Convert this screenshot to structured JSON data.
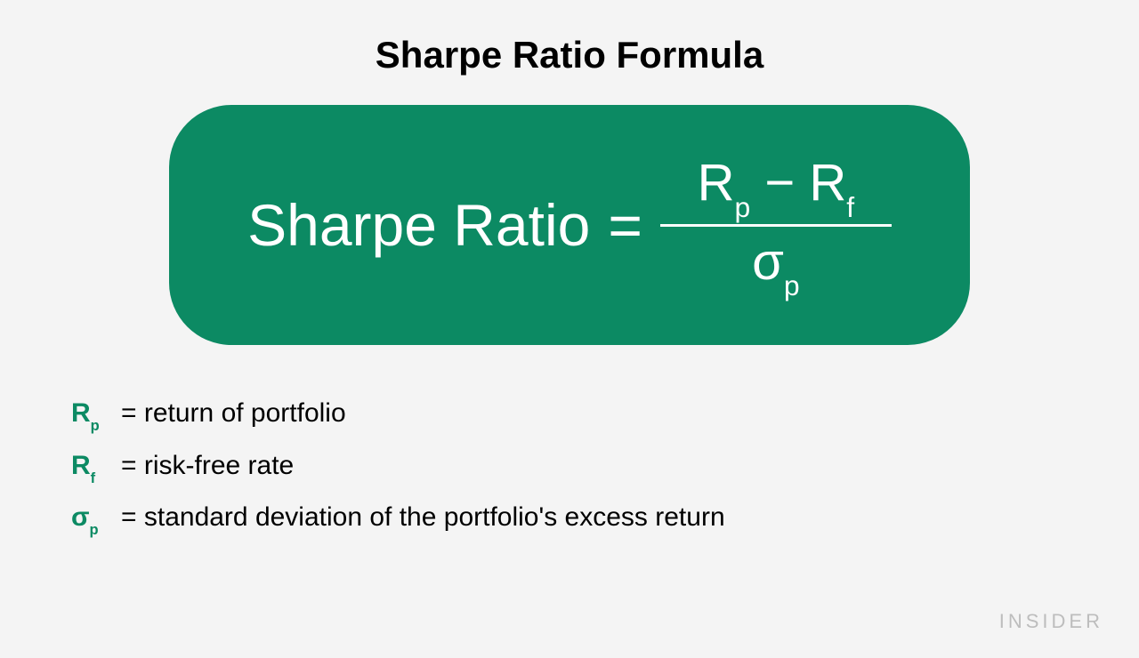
{
  "title": "Sharpe Ratio Formula",
  "formula": {
    "lhs": "Sharpe Ratio",
    "equals": "=",
    "numerator": {
      "term1": "R",
      "sub1": "p",
      "minus": "−",
      "term2": "R",
      "sub2": "f"
    },
    "denominator": {
      "symbol": "σ",
      "sub": "p"
    },
    "box_color": "#0c8a63",
    "box_radius": 70,
    "text_color": "#ffffff",
    "lhs_fontsize": 66,
    "frac_fontsize": 58
  },
  "legend": {
    "items": [
      {
        "symbol": "R",
        "sub": "p",
        "desc": "return of portfolio"
      },
      {
        "symbol": "R",
        "sub": "f",
        "desc": "risk-free rate"
      },
      {
        "symbol": "σ",
        "sub": "p",
        "desc": "standard deviation of the portfolio's excess return"
      }
    ],
    "symbol_color": "#0c8a63",
    "text_color": "#000000",
    "fontsize": 30
  },
  "brand": "INSIDER",
  "background_color": "#f4f4f4",
  "title_fontsize": 42,
  "title_color": "#000000"
}
